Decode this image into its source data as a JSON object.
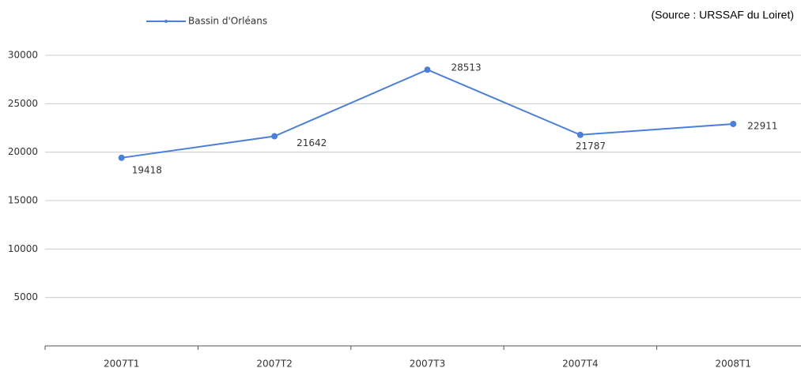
{
  "chart_data": {
    "type": "line",
    "source": "(Source : URSSAF du Loiret)",
    "categories": [
      "2007T1",
      "2007T2",
      "2007T3",
      "2007T4",
      "2008T1"
    ],
    "series": [
      {
        "name": "Bassin d'Orléans",
        "color": "#4a7fdc",
        "values": [
          19418,
          21642,
          28513,
          21787,
          22911
        ]
      }
    ],
    "ylim": [
      0,
      30000
    ],
    "yticks": [
      5000,
      10000,
      15000,
      20000,
      25000,
      30000
    ],
    "grid": true,
    "legend": "top-left"
  }
}
